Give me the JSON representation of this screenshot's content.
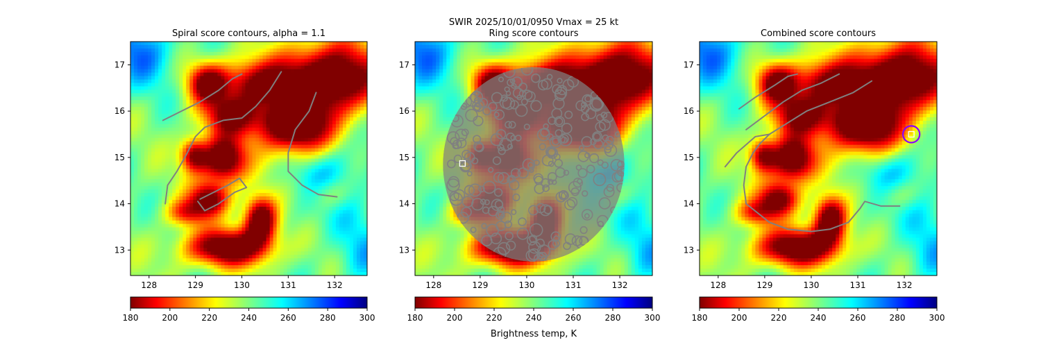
{
  "suptitle": "SWIR  2025/10/01/0950    Vmax = 25 kt",
  "colorbar_label": "Brightness temp, K",
  "chart_data": [
    {
      "type": "heatmap",
      "title": "Spiral score contours, alpha =  1.1",
      "xlim": [
        127.6,
        132.7
      ],
      "ylim": [
        12.45,
        17.5
      ],
      "xticks": [
        128,
        129,
        130,
        131,
        132
      ],
      "yticks": [
        13,
        14,
        15,
        16,
        17
      ],
      "colormap": "jet_r",
      "clim": [
        180,
        300
      ],
      "colorbar_ticks": [
        180,
        200,
        220,
        240,
        260,
        280,
        300
      ],
      "contour_color": "#808080",
      "contours": [
        [
          [
            128.3,
            15.8
          ],
          [
            128.6,
            15.95
          ],
          [
            129.1,
            16.2
          ],
          [
            129.5,
            16.45
          ],
          [
            129.8,
            16.7
          ],
          [
            130.0,
            16.8
          ]
        ],
        [
          [
            128.8,
            15.05
          ],
          [
            129.0,
            15.45
          ],
          [
            129.2,
            15.65
          ],
          [
            129.6,
            15.8
          ],
          [
            130.0,
            15.85
          ],
          [
            130.3,
            16.1
          ],
          [
            130.6,
            16.45
          ],
          [
            130.85,
            16.85
          ]
        ],
        [
          [
            128.8,
            15.05
          ],
          [
            128.6,
            14.7
          ],
          [
            128.4,
            14.4
          ],
          [
            128.35,
            14.0
          ]
        ],
        [
          [
            129.1,
            14.1
          ],
          [
            129.4,
            14.25
          ],
          [
            129.7,
            14.4
          ],
          [
            129.95,
            14.55
          ],
          [
            130.1,
            14.35
          ],
          [
            129.85,
            14.25
          ],
          [
            129.5,
            14.0
          ],
          [
            129.2,
            13.85
          ],
          [
            129.05,
            14.05
          ]
        ],
        [
          [
            131.6,
            16.4
          ],
          [
            131.45,
            16.0
          ],
          [
            131.15,
            15.6
          ],
          [
            131.0,
            15.1
          ],
          [
            131.0,
            14.7
          ],
          [
            131.3,
            14.4
          ],
          [
            131.65,
            14.2
          ],
          [
            132.05,
            14.15
          ]
        ]
      ],
      "ring_contours": false,
      "markers": []
    },
    {
      "type": "heatmap",
      "title": "Ring score contours",
      "xlim": [
        127.6,
        132.7
      ],
      "ylim": [
        12.45,
        17.5
      ],
      "xticks": [
        128,
        129,
        130,
        131,
        132
      ],
      "yticks": [
        13,
        14,
        15,
        16,
        17
      ],
      "colormap": "jet_r",
      "clim": [
        180,
        300
      ],
      "colorbar_ticks": [
        180,
        200,
        220,
        240,
        260,
        280,
        300
      ],
      "contour_color": "#808080",
      "contours": [],
      "ring_contours": true,
      "ring_region": {
        "center": [
          130.15,
          14.85
        ],
        "rx": 1.95,
        "ry": 2.1
      },
      "markers": [
        {
          "shape": "square",
          "x": 128.62,
          "y": 14.87,
          "color": "#ffffff"
        }
      ]
    },
    {
      "type": "heatmap",
      "title": "Combined score contours",
      "xlim": [
        127.6,
        132.7
      ],
      "ylim": [
        12.45,
        17.5
      ],
      "xticks": [
        128,
        129,
        130,
        131,
        132
      ],
      "yticks": [
        13,
        14,
        15,
        16,
        17
      ],
      "colormap": "jet_r",
      "clim": [
        180,
        300
      ],
      "colorbar_ticks": [
        180,
        200,
        220,
        240,
        260,
        280,
        300
      ],
      "contour_color": "#808080",
      "contours": [
        [
          [
            128.45,
            16.05
          ],
          [
            128.8,
            16.3
          ],
          [
            129.2,
            16.55
          ],
          [
            129.5,
            16.75
          ],
          [
            129.7,
            16.8
          ]
        ],
        [
          [
            128.6,
            15.6
          ],
          [
            129.0,
            15.9
          ],
          [
            129.4,
            16.2
          ],
          [
            129.8,
            16.45
          ],
          [
            130.2,
            16.6
          ],
          [
            130.6,
            16.8
          ]
        ],
        [
          [
            128.15,
            14.8
          ],
          [
            128.4,
            15.1
          ],
          [
            128.8,
            15.45
          ],
          [
            129.1,
            15.5
          ],
          [
            129.5,
            15.75
          ],
          [
            129.9,
            16.0
          ],
          [
            130.4,
            16.2
          ],
          [
            130.9,
            16.4
          ],
          [
            131.3,
            16.65
          ]
        ],
        [
          [
            128.75,
            15.1
          ],
          [
            128.9,
            15.3
          ],
          [
            129.1,
            15.5
          ]
        ],
        [
          [
            128.75,
            15.1
          ],
          [
            128.6,
            14.8
          ],
          [
            128.55,
            14.4
          ],
          [
            128.6,
            14.0
          ],
          [
            128.85,
            13.8
          ],
          [
            129.1,
            13.6
          ],
          [
            129.5,
            13.45
          ],
          [
            130.0,
            13.4
          ],
          [
            130.4,
            13.45
          ],
          [
            130.8,
            13.6
          ],
          [
            131.05,
            13.9
          ],
          [
            131.15,
            14.05
          ],
          [
            131.5,
            13.95
          ],
          [
            131.9,
            13.95
          ]
        ]
      ],
      "ring_contours": false,
      "markers": [
        {
          "shape": "square",
          "x": 132.15,
          "y": 15.5,
          "color": "#ffffff"
        },
        {
          "shape": "circle",
          "x": 132.15,
          "y": 15.5,
          "r": 0.18,
          "color": "#8b00ff"
        }
      ]
    }
  ]
}
